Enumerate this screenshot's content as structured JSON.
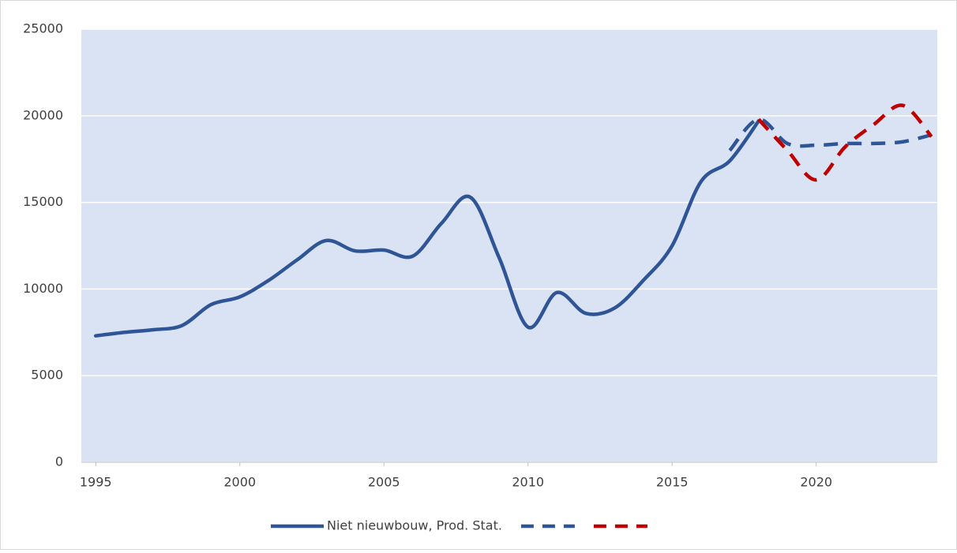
{
  "chart_data": {
    "type": "line",
    "xlim": [
      1994.5,
      2024.2
    ],
    "xticks": [
      1995,
      2000,
      2005,
      2010,
      2015,
      2020
    ],
    "ylim": [
      0,
      25000
    ],
    "yticks": [
      0,
      5000,
      10000,
      15000,
      20000,
      25000
    ],
    "grid": true,
    "smooth": true,
    "legend": "bottom",
    "series": [
      {
        "name": "Niet nieuwbouw, Prod. Stat.",
        "color": "#2f5597",
        "dash": false,
        "x": [
          1995,
          1996,
          1997,
          1998,
          1999,
          2000,
          2001,
          2002,
          2003,
          2004,
          2005,
          2006,
          2007,
          2008,
          2009,
          2010,
          2011,
          2012,
          2013,
          2014,
          2015,
          2016,
          2017,
          2018
        ],
        "values": [
          7300,
          7500,
          7650,
          7900,
          9100,
          9550,
          10500,
          11700,
          12800,
          12200,
          12250,
          11900,
          13800,
          15300,
          11800,
          7800,
          9800,
          8600,
          8900,
          10500,
          12500,
          16200,
          17400,
          19700
        ]
      },
      {
        "color": "#2f5597",
        "dash": true,
        "x": [
          2017,
          2018,
          2019,
          2020,
          2021,
          2022,
          2023,
          2024
        ],
        "values": [
          18000,
          19800,
          18400,
          18300,
          18400,
          18400,
          18500,
          18900
        ]
      },
      {
        "color": "#c00000",
        "dash": true,
        "x": [
          2018,
          2019,
          2020,
          2021,
          2022,
          2023,
          2024
        ],
        "values": [
          19800,
          18000,
          16300,
          18200,
          19500,
          20600,
          18800
        ]
      }
    ]
  }
}
